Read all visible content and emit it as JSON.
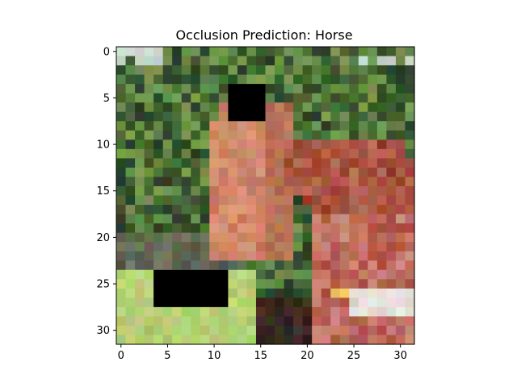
{
  "chart_data": {
    "type": "heatmap",
    "title": "Occlusion Prediction: Horse",
    "xlabel": "",
    "ylabel": "",
    "grid_size": [
      32,
      32
    ],
    "xlim": [
      -0.5,
      31.5
    ],
    "ylim": [
      31.5,
      -0.5
    ],
    "x_ticks": [
      0,
      5,
      10,
      15,
      20,
      25,
      30
    ],
    "y_ticks": [
      0,
      5,
      10,
      15,
      20,
      25,
      30
    ],
    "grid": false,
    "image_content": "pixelated photo of a horse head and neck against green foliage",
    "occlusion_patches": [
      {
        "x_start": 12,
        "x_end": 15,
        "y_start": 4,
        "y_end": 7,
        "color": "#000000"
      },
      {
        "x_start": 4,
        "x_end": 11,
        "y_start": 24,
        "y_end": 27,
        "color": "#000000"
      }
    ]
  }
}
